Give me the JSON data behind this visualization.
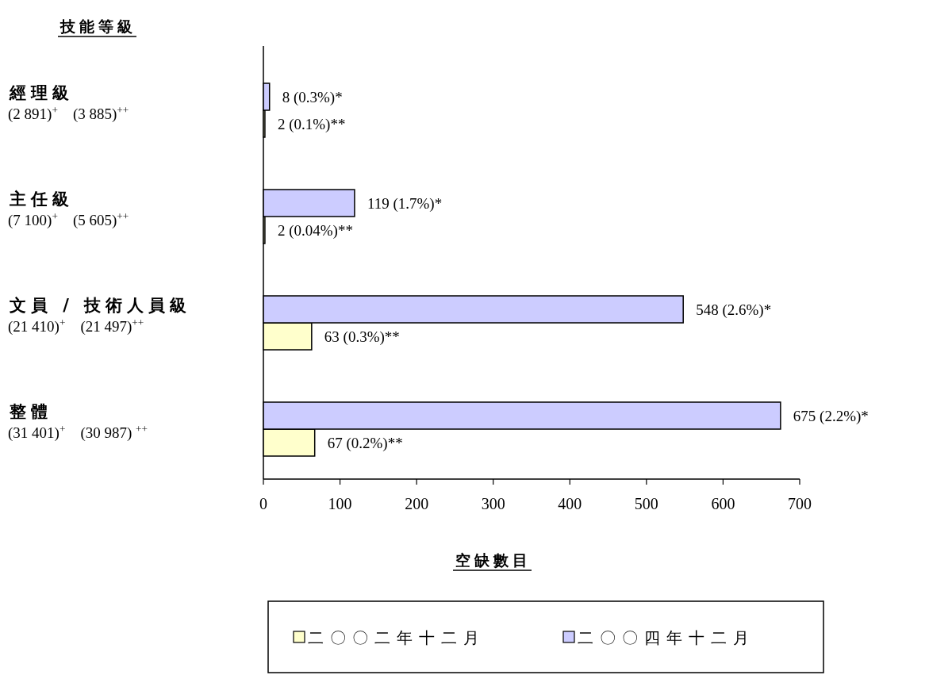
{
  "chart_data": {
    "type": "bar",
    "orientation": "horizontal",
    "annotations": [
      "技能等級"
    ],
    "xlabel": "空缺數目",
    "categories": [
      "經理級\n(2 891)$^{+}$    (3 885)$^{++}$",
      "主任級\n(7 100)$^{+}$    (5 605)$^{++}$",
      "文員 / 技術人員級\n(21 410)$^{+}$    (21 497)$^{++}$",
      "整體\n(31 401)$^{+}$    (30 987) $^{++}$"
    ],
    "series": [
      {
        "name": "二〇〇二年十二月",
        "color": "#ffffcc",
        "values": [
          2,
          2,
          63,
          67
        ],
        "value_labels": [
          "2 (0.1%)**",
          "2 (0.04%)**",
          "63 (0.3%)**",
          "67 (0.2%)**"
        ]
      },
      {
        "name": "二〇〇四年十二月",
        "color": "#ccccff",
        "values": [
          8,
          119,
          548,
          675
        ],
        "value_labels": [
          "8 (0.3%)*",
          "119 (1.7%)*",
          "548 (2.6%)*",
          "675 (2.2%)*"
        ]
      }
    ],
    "xlim": [
      0,
      700
    ],
    "xticks": [
      0,
      100,
      200,
      300,
      400,
      500,
      600,
      700
    ],
    "legend": "bottom"
  }
}
